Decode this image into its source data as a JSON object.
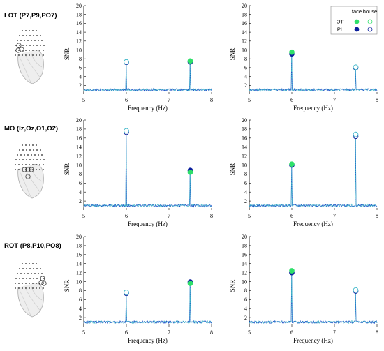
{
  "rows": [
    {
      "region_label": "LOT (P7,P9,PO7)",
      "side": "left"
    },
    {
      "region_label": "MO (Iz,Oz,O1,O2)",
      "side": "middle"
    },
    {
      "region_label": "ROT (P8,P10,PO8)",
      "side": "right"
    }
  ],
  "legend": {
    "col_headers": [
      "face",
      "house"
    ],
    "rows": [
      {
        "label": "OT",
        "face_color": "#2ee06a",
        "house_color": "#2ee06a"
      },
      {
        "label": "PL",
        "face_color": "#0b1f9c",
        "house_color": "#0b1f9c"
      }
    ]
  },
  "colors": {
    "trace_pl": "#1f4fc8",
    "trace_ot": "#3fb7c9",
    "axis": "#000000"
  },
  "chart_data": [
    {
      "type": "line",
      "panel": "LOT-left",
      "xlabel": "Frequency (Hz)",
      "ylabel": "SNR",
      "xlim": [
        5,
        8
      ],
      "ylim": [
        0,
        20
      ],
      "xticks": [
        5,
        6,
        7,
        8
      ],
      "yticks": [
        2,
        4,
        6,
        8,
        10,
        12,
        14,
        16,
        18,
        20
      ],
      "baseline": 1.0,
      "peaks": [
        {
          "x": 6.0,
          "OT": 7.3,
          "PL": 7.2,
          "highlight": "house"
        },
        {
          "x": 7.5,
          "OT": 7.5,
          "PL": 7.3,
          "highlight": "face"
        }
      ]
    },
    {
      "type": "line",
      "panel": "LOT-right",
      "xlabel": "Frequency (Hz)",
      "ylabel": "SNR",
      "xlim": [
        5,
        8
      ],
      "ylim": [
        0,
        20
      ],
      "xticks": [
        5,
        6,
        7,
        8
      ],
      "yticks": [
        2,
        4,
        6,
        8,
        10,
        12,
        14,
        16,
        18,
        20
      ],
      "baseline": 1.0,
      "peaks": [
        {
          "x": 6.0,
          "OT": 9.5,
          "PL": 9.1,
          "highlight": "face"
        },
        {
          "x": 7.5,
          "OT": 6.1,
          "PL": 6.0,
          "highlight": "house"
        }
      ]
    },
    {
      "type": "line",
      "panel": "MO-left",
      "xlabel": "Frequency (Hz)",
      "ylabel": "SNR",
      "xlim": [
        5,
        8
      ],
      "ylim": [
        0,
        20
      ],
      "xticks": [
        5,
        6,
        7,
        8
      ],
      "yticks": [
        2,
        4,
        6,
        8,
        10,
        12,
        14,
        16,
        18,
        20
      ],
      "baseline": 1.0,
      "peaks": [
        {
          "x": 6.0,
          "OT": 17.6,
          "PL": 17.3,
          "highlight": "house"
        },
        {
          "x": 7.5,
          "OT": 8.4,
          "PL": 8.8,
          "highlight": "face"
        }
      ]
    },
    {
      "type": "line",
      "panel": "MO-right",
      "xlabel": "Frequency (Hz)",
      "ylabel": "SNR",
      "xlim": [
        5,
        8
      ],
      "ylim": [
        0,
        20
      ],
      "xticks": [
        5,
        6,
        7,
        8
      ],
      "yticks": [
        2,
        4,
        6,
        8,
        10,
        12,
        14,
        16,
        18,
        20
      ],
      "baseline": 1.0,
      "peaks": [
        {
          "x": 6.0,
          "OT": 10.2,
          "PL": 10.0,
          "highlight": "face"
        },
        {
          "x": 7.5,
          "OT": 16.8,
          "PL": 16.4,
          "highlight": "house"
        }
      ]
    },
    {
      "type": "line",
      "panel": "ROT-left",
      "xlabel": "Frequency (Hz)",
      "ylabel": "SNR",
      "xlim": [
        5,
        8
      ],
      "ylim": [
        0,
        20
      ],
      "xticks": [
        5,
        6,
        7,
        8
      ],
      "yticks": [
        2,
        4,
        6,
        8,
        10,
        12,
        14,
        16,
        18,
        20
      ],
      "baseline": 1.0,
      "peaks": [
        {
          "x": 6.0,
          "OT": 7.6,
          "PL": 7.4,
          "highlight": "house"
        },
        {
          "x": 7.5,
          "OT": 9.6,
          "PL": 9.9,
          "highlight": "face"
        }
      ]
    },
    {
      "type": "line",
      "panel": "ROT-right",
      "xlabel": "Frequency (Hz)",
      "ylabel": "SNR",
      "xlim": [
        5,
        8
      ],
      "ylim": [
        0,
        20
      ],
      "xticks": [
        5,
        6,
        7,
        8
      ],
      "yticks": [
        2,
        4,
        6,
        8,
        10,
        12,
        14,
        16,
        18,
        20
      ],
      "baseline": 1.0,
      "peaks": [
        {
          "x": 6.0,
          "OT": 12.4,
          "PL": 12.0,
          "highlight": "face"
        },
        {
          "x": 7.5,
          "OT": 8.1,
          "PL": 7.9,
          "highlight": "house"
        }
      ]
    }
  ]
}
